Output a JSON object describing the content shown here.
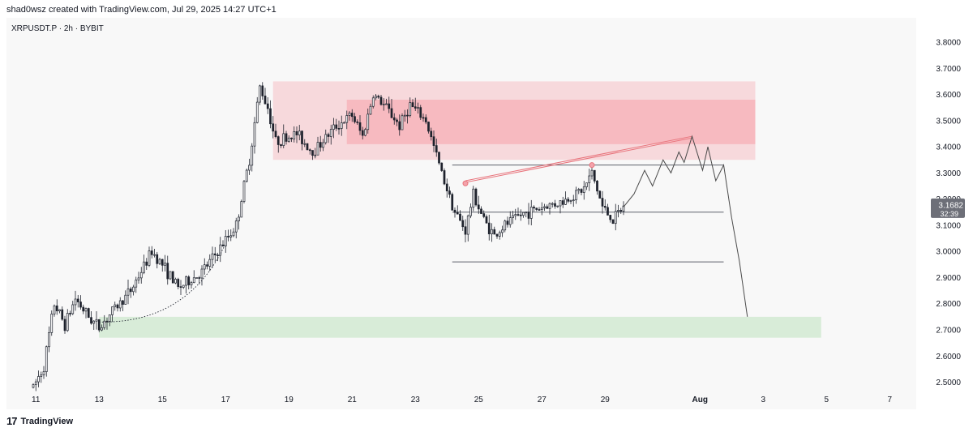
{
  "header": {
    "credit": "shad0wsz created with TradingView.com, Jul 29, 2025 14:27 UTC+1"
  },
  "symbol": {
    "label": "XRPUSDT.P · 2h · BYBIT"
  },
  "footer": {
    "logo": "17",
    "brand": "TradingView"
  },
  "colors": {
    "up": "#1e222d",
    "down": "#1e222d",
    "supply_zone": "#f7a1a9",
    "demand_zone": "#cfe9cf",
    "wedge_line": "#e8747c",
    "projection": "#4a4a4a",
    "last_price_bg": "#6d6f78"
  },
  "chart_data": {
    "type": "candlestick",
    "symbol": "XRPUSDT.P",
    "interval": "2h",
    "exchange": "BYBIT",
    "ylim": [
      2.45,
      3.85
    ],
    "y_ticks": [
      "3.8000",
      "3.7000",
      "3.6000",
      "3.5000",
      "3.4000",
      "3.3000",
      "3.2000",
      "3.1000",
      "3.0000",
      "2.9000",
      "2.8000",
      "2.7000",
      "2.6000",
      "2.5000"
    ],
    "x_ticks": [
      "11",
      "13",
      "15",
      "17",
      "19",
      "21",
      "23",
      "25",
      "27",
      "29",
      "Aug",
      "3",
      "5",
      "7"
    ],
    "last_price": "3.1682",
    "countdown": "32:39",
    "price_path": [
      [
        "2025-07-10 22:00",
        2.48
      ],
      [
        "2025-07-11 06:00",
        2.56
      ],
      [
        "2025-07-11 14:00",
        2.8
      ],
      [
        "2025-07-11 22:00",
        2.72
      ],
      [
        "2025-07-12 06:00",
        2.82
      ],
      [
        "2025-07-12 16:00",
        2.75
      ],
      [
        "2025-07-13 00:00",
        2.71
      ],
      [
        "2025-07-13 10:00",
        2.77
      ],
      [
        "2025-07-14 00:00",
        2.85
      ],
      [
        "2025-07-14 16:00",
        3.0
      ],
      [
        "2025-07-15 00:00",
        2.95
      ],
      [
        "2025-07-15 12:00",
        2.86
      ],
      [
        "2025-07-16 06:00",
        2.92
      ],
      [
        "2025-07-16 18:00",
        3.0
      ],
      [
        "2025-07-17 08:00",
        3.1
      ],
      [
        "2025-07-17 18:00",
        3.35
      ],
      [
        "2025-07-18 02:00",
        3.63
      ],
      [
        "2025-07-18 08:00",
        3.55
      ],
      [
        "2025-07-18 14:00",
        3.42
      ],
      [
        "2025-07-19 06:00",
        3.45
      ],
      [
        "2025-07-19 18:00",
        3.38
      ],
      [
        "2025-07-20 12:00",
        3.48
      ],
      [
        "2025-07-21 00:00",
        3.52
      ],
      [
        "2025-07-21 08:00",
        3.44
      ],
      [
        "2025-07-21 16:00",
        3.6
      ],
      [
        "2025-07-22 02:00",
        3.55
      ],
      [
        "2025-07-22 12:00",
        3.48
      ],
      [
        "2025-07-22 20:00",
        3.56
      ],
      [
        "2025-07-23 08:00",
        3.5
      ],
      [
        "2025-07-23 20:00",
        3.3
      ],
      [
        "2025-07-24 06:00",
        3.15
      ],
      [
        "2025-07-24 14:00",
        3.08
      ],
      [
        "2025-07-24 20:00",
        3.22
      ],
      [
        "2025-07-25 04:00",
        3.12
      ],
      [
        "2025-07-25 12:00",
        3.06
      ],
      [
        "2025-07-25 20:00",
        3.1
      ],
      [
        "2025-07-26 08:00",
        3.14
      ],
      [
        "2025-07-27 00:00",
        3.17
      ],
      [
        "2025-07-27 16:00",
        3.19
      ],
      [
        "2025-07-28 08:00",
        3.24
      ],
      [
        "2025-07-28 14:00",
        3.3
      ],
      [
        "2025-07-28 22:00",
        3.17
      ],
      [
        "2025-07-29 06:00",
        3.12
      ],
      [
        "2025-07-29 14:00",
        3.17
      ]
    ],
    "projection_path": [
      [
        "2025-07-29 14:00",
        3.17
      ],
      [
        "2025-07-29 22:00",
        3.22
      ],
      [
        "2025-07-30 06:00",
        3.31
      ],
      [
        "2025-07-30 12:00",
        3.25
      ],
      [
        "2025-07-30 20:00",
        3.35
      ],
      [
        "2025-07-31 02:00",
        3.3
      ],
      [
        "2025-07-31 08:00",
        3.38
      ],
      [
        "2025-07-31 12:00",
        3.34
      ],
      [
        "2025-07-31 18:00",
        3.44
      ],
      [
        "2025-08-01 02:00",
        3.31
      ],
      [
        "2025-08-01 06:00",
        3.4
      ],
      [
        "2025-08-01 12:00",
        3.27
      ],
      [
        "2025-08-01 18:00",
        3.33
      ],
      [
        "2025-08-02 00:00",
        3.13
      ],
      [
        "2025-08-02 06:00",
        2.96
      ],
      [
        "2025-08-02 12:00",
        2.75
      ]
    ],
    "zones": [
      {
        "kind": "supply-outer",
        "x_start": "2025-07-18 12:00",
        "x_end": "2025-08-02 18:00",
        "y_bottom": 3.35,
        "y_top": 3.65
      },
      {
        "kind": "supply-inner",
        "x_start": "2025-07-20 20:00",
        "x_end": "2025-08-02 18:00",
        "y_bottom": 3.41,
        "y_top": 3.58
      },
      {
        "kind": "demand",
        "x_start": "2025-07-13 00:00",
        "x_end": "2025-08-04 20:00",
        "y_bottom": 2.67,
        "y_top": 2.75
      }
    ],
    "levels": [
      {
        "y": 3.33,
        "x_start": "2025-07-24 04:00",
        "x_end": "2025-08-01 18:00"
      },
      {
        "y": 3.15,
        "x_start": "2025-07-24 04:00",
        "x_end": "2025-08-01 18:00"
      },
      {
        "y": 2.96,
        "x_start": "2025-07-24 04:00",
        "x_end": "2025-08-01 18:00"
      }
    ],
    "wedge_line": {
      "from": [
        "2025-07-24 14:00",
        3.27
      ],
      "to": [
        "2025-07-31 18:00",
        3.44
      ]
    },
    "markers": [
      [
        "2025-07-24 14:00",
        3.26
      ],
      [
        "2025-07-28 14:00",
        3.33
      ]
    ],
    "curve": {
      "from": [
        "2025-07-13 00:00",
        2.73
      ],
      "to": [
        "2025-07-17 00:00",
        3.03
      ]
    }
  }
}
